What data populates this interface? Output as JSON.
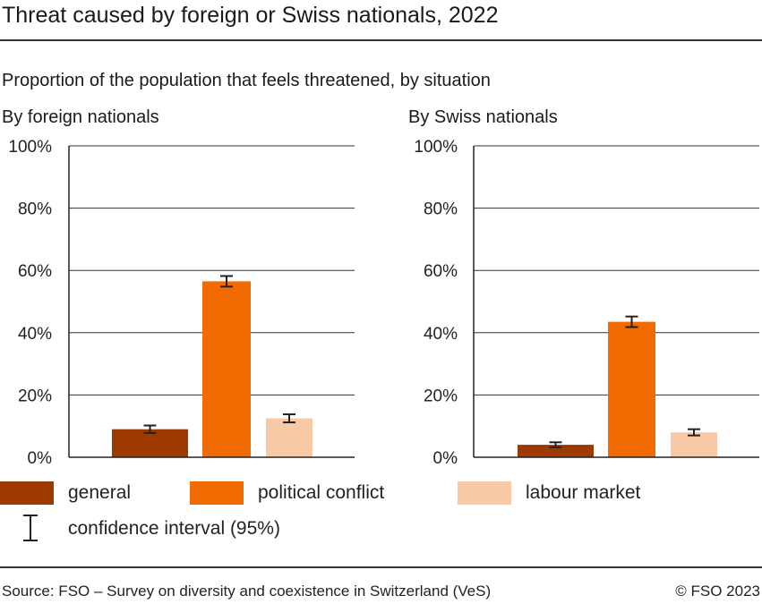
{
  "title": "Threat caused by foreign or Swiss nationals, 2022",
  "subtitle": "Proportion of the population that feels threatened, by situation",
  "legend": {
    "general": "general",
    "political": "political conflict",
    "labour": "labour market",
    "ci": "confidence interval (95%)"
  },
  "colors": {
    "general": "#9c3a00",
    "political": "#f26b00",
    "labour": "#f9c9a5",
    "axis": "#222222",
    "grid": "#333333"
  },
  "footer": {
    "source": "Source: FSO – Survey on diversity and coexistence in Switzerland (VeS)",
    "copyright": "© FSO 2023"
  },
  "chart_data": [
    {
      "type": "bar",
      "title": "By foreign nationals",
      "categories": [
        "general",
        "political conflict",
        "labour market"
      ],
      "values": [
        9,
        56.5,
        12.5
      ],
      "ci_low": [
        7.8,
        54.8,
        11.2
      ],
      "ci_high": [
        10.2,
        58.2,
        13.8
      ],
      "ylim": [
        0,
        100
      ],
      "yticks": [
        "0%",
        "20%",
        "40%",
        "60%",
        "80%",
        "100%"
      ]
    },
    {
      "type": "bar",
      "title": "By Swiss nationals",
      "categories": [
        "general",
        "political conflict",
        "labour market"
      ],
      "values": [
        4,
        43.5,
        8
      ],
      "ci_low": [
        3.2,
        41.8,
        7.0
      ],
      "ci_high": [
        4.8,
        45.2,
        9.0
      ],
      "ylim": [
        0,
        100
      ],
      "yticks": [
        "0%",
        "20%",
        "40%",
        "60%",
        "80%",
        "100%"
      ]
    }
  ]
}
